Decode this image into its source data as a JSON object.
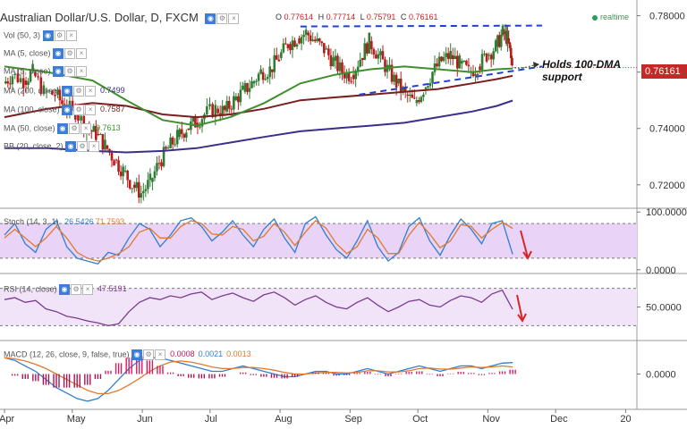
{
  "header": {
    "symbol_title": "Australian Dollar/U.S. Dollar, D, FXCM",
    "ohlc": [
      {
        "label": "O",
        "value": "0.77614"
      },
      {
        "label": "H",
        "value": "0.77714"
      },
      {
        "label": "L",
        "value": "0.75791"
      },
      {
        "label": "C",
        "value": "0.76161"
      }
    ],
    "realtime": "realtime"
  },
  "indicators": {
    "vol": {
      "label": "Vol (50, 3)"
    },
    "ma_a": {
      "label": "MA (5, close)"
    },
    "ma_b": {
      "label": "MA (5, close)"
    },
    "ma200": {
      "label": "MA (200, close)",
      "value": "0.7499"
    },
    "ma100": {
      "label": "MA (100, close)",
      "value": "0.7587"
    },
    "ma50": {
      "label": "MA (50, close)",
      "value": "0.7613"
    },
    "bb": {
      "label": "BB (20, close, 2)"
    },
    "stoch": {
      "label": "Stoch (14, 3, 1)",
      "value_k": "26.5426",
      "value_d": "71.7593"
    },
    "rsi": {
      "label": "RSI (14, close)",
      "value": "47.5191"
    },
    "macd": {
      "label": "MACD (12, 26, close, 9, false, true)",
      "hist": "0.0008",
      "macd": "0.0021",
      "signal": "0.0013"
    }
  },
  "annotation": {
    "line1": "Holds 100-DMA",
    "line2": "support"
  },
  "price_tag": "0.76161",
  "colors": {
    "up_candle": "#2e7d32",
    "down_candle": "#b71c1c",
    "ma50": "#3f8f2f",
    "ma100": "#7a1e1e",
    "ma200": "#3a2f8a",
    "trendline": "#1f3fd6",
    "stoch_k": "#2f7fd0",
    "stoch_d": "#e07a2f",
    "rsi": "#7a3b8f",
    "macd": "#2f7fd0",
    "signal": "#e07a2f",
    "arrow": "#d62828"
  },
  "chart_data": [
    {
      "type": "candlestick",
      "title": "Australian Dollar/U.S. Dollar, D, FXCM",
      "x_ticks": [
        "Apr",
        "May",
        "Jun",
        "Jul",
        "Aug",
        "Sep",
        "Oct",
        "Nov",
        "Dec",
        "20"
      ],
      "y_ticks": [
        "0.78000",
        "0.76000",
        "0.74000",
        "0.72000"
      ],
      "ylim": [
        0.712,
        0.784
      ],
      "close_path": [
        [
          "2017-04-01",
          0.756
        ],
        [
          "2017-04-05",
          0.759
        ],
        [
          "2017-04-10",
          0.757
        ],
        [
          "2017-04-14",
          0.76
        ],
        [
          "2017-04-19",
          0.753
        ],
        [
          "2017-04-24",
          0.752
        ],
        [
          "2017-04-28",
          0.748
        ],
        [
          "2017-05-03",
          0.746
        ],
        [
          "2017-05-08",
          0.74
        ],
        [
          "2017-05-12",
          0.738
        ],
        [
          "2017-05-16",
          0.734
        ],
        [
          "2017-05-20",
          0.729
        ],
        [
          "2017-05-24",
          0.725
        ],
        [
          "2017-05-28",
          0.72
        ],
        [
          "2017-06-01",
          0.717
        ],
        [
          "2017-06-05",
          0.721
        ],
        [
          "2017-06-09",
          0.728
        ],
        [
          "2017-06-13",
          0.733
        ],
        [
          "2017-06-17",
          0.737
        ],
        [
          "2017-06-21",
          0.74
        ],
        [
          "2017-06-25",
          0.742
        ],
        [
          "2017-06-29",
          0.745
        ],
        [
          "2017-07-04",
          0.747
        ],
        [
          "2017-07-08",
          0.746
        ],
        [
          "2017-07-12",
          0.75
        ],
        [
          "2017-07-16",
          0.753
        ],
        [
          "2017-07-20",
          0.756
        ],
        [
          "2017-07-24",
          0.76
        ],
        [
          "2017-07-28",
          0.761
        ],
        [
          "2017-08-01",
          0.765
        ],
        [
          "2017-08-05",
          0.77
        ],
        [
          "2017-08-09",
          0.772
        ],
        [
          "2017-08-13",
          0.774
        ],
        [
          "2017-08-17",
          0.771
        ],
        [
          "2017-08-21",
          0.768
        ],
        [
          "2017-08-25",
          0.764
        ],
        [
          "2017-08-29",
          0.76
        ],
        [
          "2017-09-02",
          0.759
        ],
        [
          "2017-09-06",
          0.765
        ],
        [
          "2017-09-10",
          0.771
        ],
        [
          "2017-09-14",
          0.766
        ],
        [
          "2017-09-18",
          0.761
        ],
        [
          "2017-09-22",
          0.756
        ],
        [
          "2017-09-26",
          0.752
        ],
        [
          "2017-09-30",
          0.749
        ],
        [
          "2017-10-04",
          0.754
        ],
        [
          "2017-10-08",
          0.76
        ],
        [
          "2017-10-12",
          0.764
        ],
        [
          "2017-10-16",
          0.766
        ],
        [
          "2017-10-20",
          0.763
        ],
        [
          "2017-10-24",
          0.76
        ],
        [
          "2017-10-28",
          0.762
        ],
        [
          "2017-11-01",
          0.766
        ],
        [
          "2017-11-05",
          0.769
        ],
        [
          "2017-11-08",
          0.774
        ],
        [
          "2017-11-10",
          0.772
        ],
        [
          "2017-11-12",
          0.762
        ]
      ],
      "ma50": [
        [
          "2017-04-01",
          0.762
        ],
        [
          "2017-04-20",
          0.76
        ],
        [
          "2017-05-10",
          0.757
        ],
        [
          "2017-05-25",
          0.75
        ],
        [
          "2017-06-10",
          0.743
        ],
        [
          "2017-06-25",
          0.741
        ],
        [
          "2017-07-10",
          0.744
        ],
        [
          "2017-07-25",
          0.749
        ],
        [
          "2017-08-10",
          0.756
        ],
        [
          "2017-08-25",
          0.759
        ],
        [
          "2017-09-10",
          0.761
        ],
        [
          "2017-09-25",
          0.762
        ],
        [
          "2017-10-10",
          0.761
        ],
        [
          "2017-10-25",
          0.76
        ],
        [
          "2017-11-05",
          0.761
        ],
        [
          "2017-11-12",
          0.7613
        ]
      ],
      "ma100": [
        [
          "2017-04-01",
          0.744
        ],
        [
          "2017-04-20",
          0.747
        ],
        [
          "2017-05-10",
          0.749
        ],
        [
          "2017-05-25",
          0.748
        ],
        [
          "2017-06-10",
          0.745
        ],
        [
          "2017-06-25",
          0.744
        ],
        [
          "2017-07-10",
          0.745
        ],
        [
          "2017-07-25",
          0.747
        ],
        [
          "2017-08-10",
          0.75
        ],
        [
          "2017-08-25",
          0.751
        ],
        [
          "2017-09-10",
          0.752
        ],
        [
          "2017-09-25",
          0.753
        ],
        [
          "2017-10-10",
          0.754
        ],
        [
          "2017-10-25",
          0.756
        ],
        [
          "2017-11-05",
          0.7575
        ],
        [
          "2017-11-12",
          0.7587
        ]
      ],
      "ma200": [
        [
          "2017-04-01",
          0.733
        ],
        [
          "2017-04-20",
          0.733
        ],
        [
          "2017-05-10",
          0.732
        ],
        [
          "2017-05-25",
          0.7315
        ],
        [
          "2017-06-10",
          0.732
        ],
        [
          "2017-06-25",
          0.733
        ],
        [
          "2017-07-10",
          0.735
        ],
        [
          "2017-07-25",
          0.737
        ],
        [
          "2017-08-10",
          0.739
        ],
        [
          "2017-08-25",
          0.74
        ],
        [
          "2017-09-10",
          0.741
        ],
        [
          "2017-09-25",
          0.742
        ],
        [
          "2017-10-10",
          0.744
        ],
        [
          "2017-10-25",
          0.746
        ],
        [
          "2017-11-05",
          0.748
        ],
        [
          "2017-11-12",
          0.7499
        ]
      ],
      "trendline_upper": [
        [
          "2017-08-10",
          0.7762
        ],
        [
          "2017-11-25",
          0.7765
        ]
      ],
      "trendline_lower": [
        [
          "2017-09-05",
          0.752
        ],
        [
          "2017-11-25",
          0.762
        ]
      ],
      "last_close": 0.76161
    },
    {
      "type": "line",
      "title": "Stoch (14, 3, 1)",
      "y_ticks": [
        "100.0000",
        "0.0000"
      ],
      "ylim": [
        -5,
        105
      ],
      "levels": [
        80,
        20
      ],
      "series": [
        {
          "name": "%K",
          "values": [
            60,
            80,
            45,
            30,
            70,
            85,
            40,
            20,
            15,
            10,
            30,
            25,
            55,
            80,
            70,
            40,
            60,
            85,
            90,
            75,
            50,
            65,
            85,
            60,
            40,
            70,
            88,
            55,
            30,
            80,
            92,
            60,
            35,
            20,
            50,
            85,
            40,
            15,
            30,
            75,
            90,
            50,
            25,
            60,
            88,
            70,
            45,
            80,
            85,
            26.5426
          ]
        },
        {
          "name": "%D",
          "values": [
            55,
            70,
            55,
            40,
            55,
            75,
            55,
            30,
            20,
            15,
            20,
            28,
            40,
            65,
            72,
            55,
            55,
            75,
            85,
            80,
            62,
            60,
            75,
            70,
            50,
            58,
            80,
            65,
            42,
            65,
            85,
            72,
            45,
            28,
            40,
            70,
            55,
            28,
            28,
            60,
            82,
            62,
            38,
            50,
            78,
            75,
            55,
            70,
            82,
            71.7593
          ]
        }
      ]
    },
    {
      "type": "line",
      "title": "RSI (14, close)",
      "y_ticks": [
        "50.0000"
      ],
      "ylim": [
        15,
        85
      ],
      "levels": [
        70,
        30
      ],
      "series": [
        {
          "name": "RSI",
          "values": [
            58,
            60,
            55,
            57,
            48,
            45,
            40,
            38,
            35,
            33,
            30,
            32,
            45,
            55,
            60,
            58,
            62,
            60,
            64,
            66,
            58,
            62,
            65,
            60,
            56,
            63,
            66,
            60,
            52,
            58,
            62,
            55,
            50,
            48,
            55,
            60,
            52,
            45,
            50,
            56,
            58,
            52,
            50,
            57,
            62,
            60,
            55,
            64,
            68,
            47.5191
          ]
        }
      ]
    },
    {
      "type": "line",
      "title": "MACD (12, 26, close, 9, false, true)",
      "y_ticks": [
        "0.0000"
      ],
      "ylim": [
        -0.006,
        0.006
      ],
      "series": [
        {
          "name": "MACD",
          "values": [
            0.003,
            0.0025,
            0.0015,
            0.0005,
            -0.001,
            -0.0025,
            -0.0035,
            -0.0045,
            -0.005,
            -0.0045,
            -0.003,
            -0.001,
            0.001,
            0.0025,
            0.003,
            0.003,
            0.0025,
            0.002,
            0.0015,
            0.001,
            0.0005,
            0.0005,
            0.001,
            0.0015,
            0.001,
            0.0005,
            0.0,
            -0.0005,
            -0.0005,
            0.0,
            0.0005,
            0.0005,
            0.0,
            0.0,
            0.0005,
            0.001,
            0.0005,
            0.0,
            0.0005,
            0.001,
            0.0015,
            0.001,
            0.0005,
            0.001,
            0.0015,
            0.0015,
            0.001,
            0.0015,
            0.002,
            0.0021
          ]
        },
        {
          "name": "Signal",
          "values": [
            0.003,
            0.0028,
            0.0024,
            0.0018,
            0.001,
            0.0,
            -0.001,
            -0.002,
            -0.003,
            -0.0036,
            -0.0036,
            -0.003,
            -0.002,
            -0.0008,
            0.0005,
            0.0015,
            0.0022,
            0.0024,
            0.0022,
            0.0018,
            0.0013,
            0.001,
            0.001,
            0.0012,
            0.0012,
            0.001,
            0.0007,
            0.0003,
            0.0,
            0.0,
            0.0002,
            0.0003,
            0.0003,
            0.0002,
            0.0003,
            0.0006,
            0.0006,
            0.0004,
            0.0004,
            0.0006,
            0.001,
            0.0011,
            0.0009,
            0.0009,
            0.0011,
            0.0013,
            0.0012,
            0.0013,
            0.0015,
            0.0013
          ]
        },
        {
          "name": "Histogram",
          "values": [
            0.0,
            -0.0003,
            -0.0009,
            -0.0013,
            -0.002,
            -0.0025,
            -0.0025,
            -0.0025,
            -0.002,
            -0.0009,
            0.0006,
            0.002,
            0.003,
            0.0033,
            0.0025,
            0.0015,
            0.0003,
            -0.0004,
            -0.0007,
            -0.0008,
            -0.0008,
            -0.0005,
            0.0,
            0.0003,
            -0.0002,
            -0.0005,
            -0.0007,
            -0.0008,
            -0.0005,
            0.0,
            0.0003,
            0.0002,
            -0.0003,
            -0.0002,
            0.0002,
            0.0004,
            -0.0001,
            -0.0004,
            0.0001,
            0.0004,
            0.0005,
            -0.0001,
            -0.0004,
            0.0001,
            0.0004,
            0.0002,
            -0.0002,
            0.0002,
            0.0005,
            0.0008
          ]
        }
      ]
    }
  ]
}
